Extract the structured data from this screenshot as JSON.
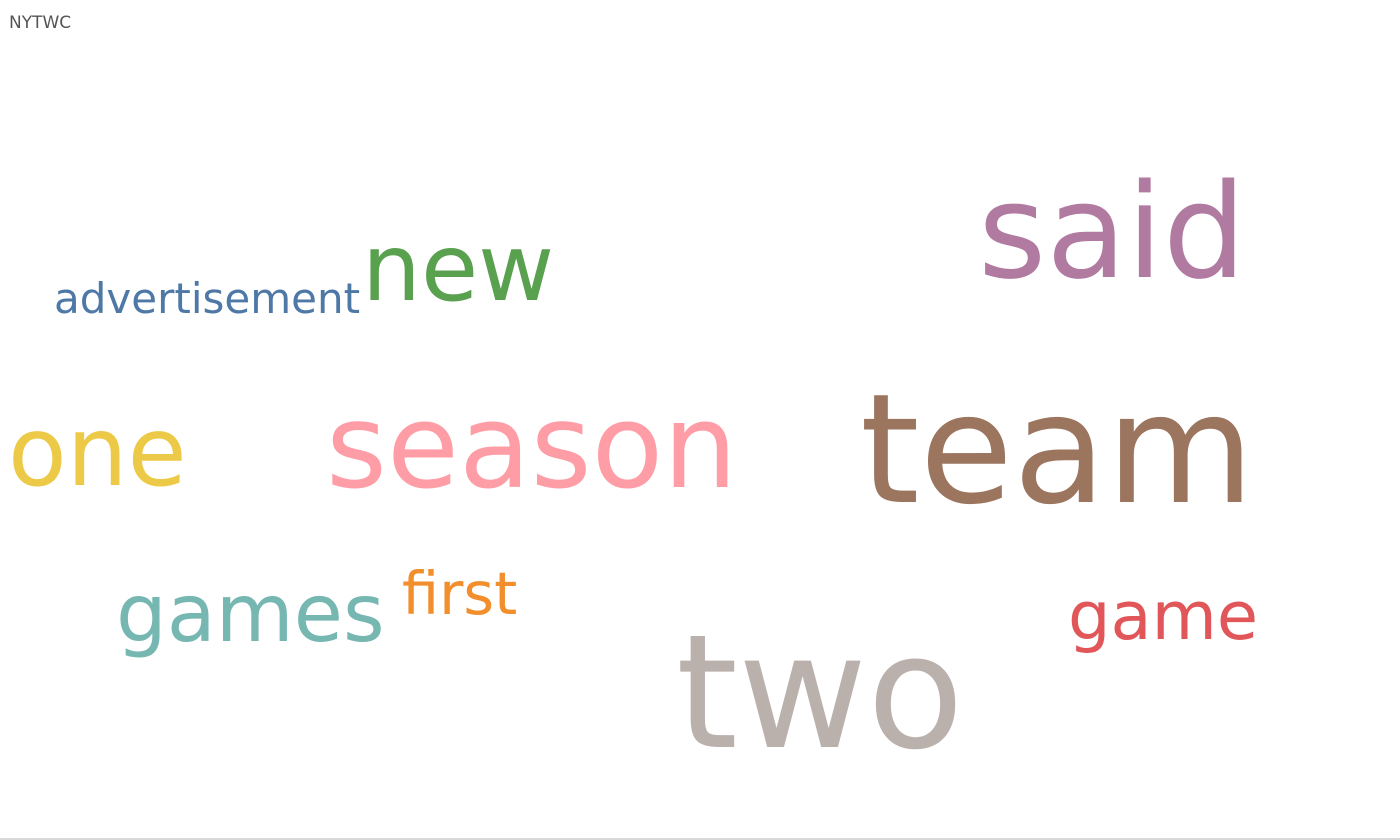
{
  "sheet": {
    "title": "NYTWC"
  },
  "chart_data": {
    "type": "word_cloud",
    "title": "NYTWC",
    "words": [
      {
        "text": "two",
        "weight": 10,
        "color": "#bab0ac"
      },
      {
        "text": "team",
        "weight": 9,
        "color": "#9c755f"
      },
      {
        "text": "season",
        "weight": 8,
        "color": "#ff9da7"
      },
      {
        "text": "said",
        "weight": 7,
        "color": "#b07aa1"
      },
      {
        "text": "one",
        "weight": 6,
        "color": "#edc948"
      },
      {
        "text": "new",
        "weight": 5,
        "color": "#59a14f"
      },
      {
        "text": "games",
        "weight": 4,
        "color": "#76b7b2"
      },
      {
        "text": "game",
        "weight": 3,
        "color": "#e15759"
      },
      {
        "text": "first",
        "weight": 2,
        "color": "#f28e2b"
      },
      {
        "text": "advertisement",
        "weight": 1,
        "color": "#4e79a7"
      }
    ]
  }
}
